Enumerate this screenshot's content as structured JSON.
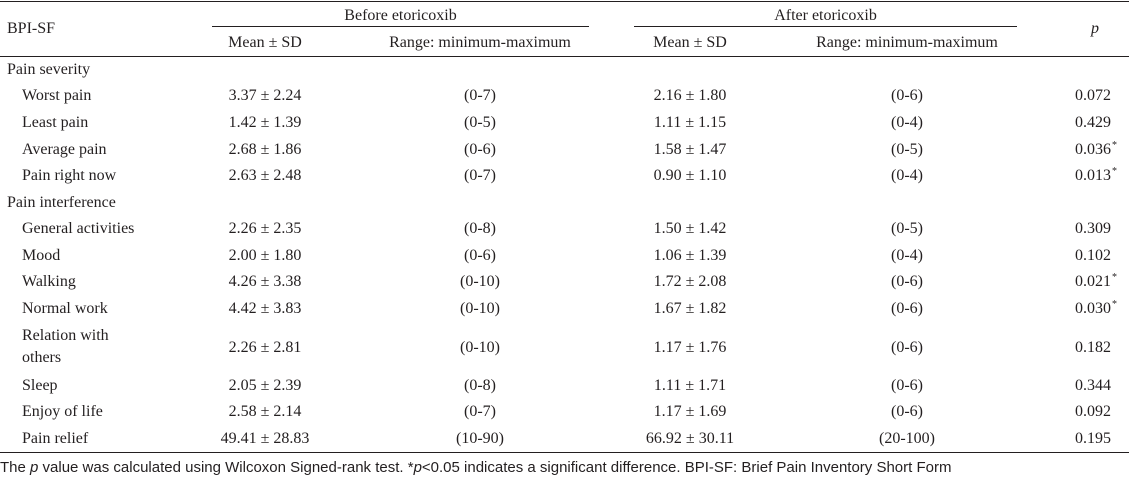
{
  "header": {
    "col1": "BPI-SF",
    "group_before": "Before etoricoxib",
    "group_after": "After etoricoxib",
    "p": "p",
    "mean_sd": "Mean ± SD",
    "range": "Range: minimum-maximum"
  },
  "rows": [
    {
      "label": "Pain severity",
      "section": true
    },
    {
      "label": "Worst pain",
      "before_mean": "3.37 ± 2.24",
      "before_range": "(0-7)",
      "after_mean": "2.16 ± 1.80",
      "after_range": "(0-6)",
      "p": "0.072",
      "sig": ""
    },
    {
      "label": "Least pain",
      "before_mean": "1.42 ± 1.39",
      "before_range": "(0-5)",
      "after_mean": "1.11 ± 1.15",
      "after_range": "(0-4)",
      "p": "0.429",
      "sig": ""
    },
    {
      "label": "Average pain",
      "before_mean": "2.68 ± 1.86",
      "before_range": "(0-6)",
      "after_mean": "1.58 ± 1.47",
      "after_range": "(0-5)",
      "p": "0.036",
      "sig": "*"
    },
    {
      "label": "Pain right now",
      "before_mean": "2.63 ± 2.48",
      "before_range": "(0-7)",
      "after_mean": "0.90 ± 1.10",
      "after_range": "(0-4)",
      "p": "0.013",
      "sig": "*"
    },
    {
      "label": "Pain interference",
      "section": true
    },
    {
      "label": "General activities",
      "before_mean": "2.26 ± 2.35",
      "before_range": "(0-8)",
      "after_mean": "1.50 ± 1.42",
      "after_range": "(0-5)",
      "p": "0.309",
      "sig": ""
    },
    {
      "label": "Mood",
      "before_mean": "2.00 ± 1.80",
      "before_range": "(0-6)",
      "after_mean": "1.06 ± 1.39",
      "after_range": "(0-4)",
      "p": "0.102",
      "sig": ""
    },
    {
      "label": "Walking",
      "before_mean": "4.26 ± 3.38",
      "before_range": "(0-10)",
      "after_mean": "1.72 ± 2.08",
      "after_range": "(0-6)",
      "p": "0.021",
      "sig": "*"
    },
    {
      "label": "Normal work",
      "before_mean": "4.42 ± 3.83",
      "before_range": "(0-10)",
      "after_mean": "1.67 ± 1.82",
      "after_range": "(0-6)",
      "p": "0.030",
      "sig": "*"
    },
    {
      "label": "Relation with",
      "label2": "others",
      "before_mean": "2.26 ± 2.81",
      "before_range": "(0-10)",
      "after_mean": "1.17 ± 1.76",
      "after_range": "(0-6)",
      "p": "0.182",
      "sig": ""
    },
    {
      "label": "Sleep",
      "before_mean": "2.05 ± 2.39",
      "before_range": "(0-8)",
      "after_mean": "1.11 ± 1.71",
      "after_range": "(0-6)",
      "p": "0.344",
      "sig": ""
    },
    {
      "label": "Enjoy of life",
      "before_mean": "2.58 ± 2.14",
      "before_range": "(0-7)",
      "after_mean": "1.17 ± 1.69",
      "after_range": "(0-6)",
      "p": "0.092",
      "sig": ""
    },
    {
      "label": "Pain relief",
      "before_mean": "49.41 ± 28.83",
      "before_range": "(10-90)",
      "after_mean": "66.92 ± 30.11",
      "after_range": "(20-100)",
      "p": "0.195",
      "sig": ""
    }
  ],
  "caption": {
    "part1": "The ",
    "p_italic": "p",
    "part2": " value was calculated using Wilcoxon Signed-rank test. *",
    "p_italic2": "p",
    "part3": "<0.05 indicates a significant difference. BPI-SF: Brief Pain Inventory Short Form"
  }
}
